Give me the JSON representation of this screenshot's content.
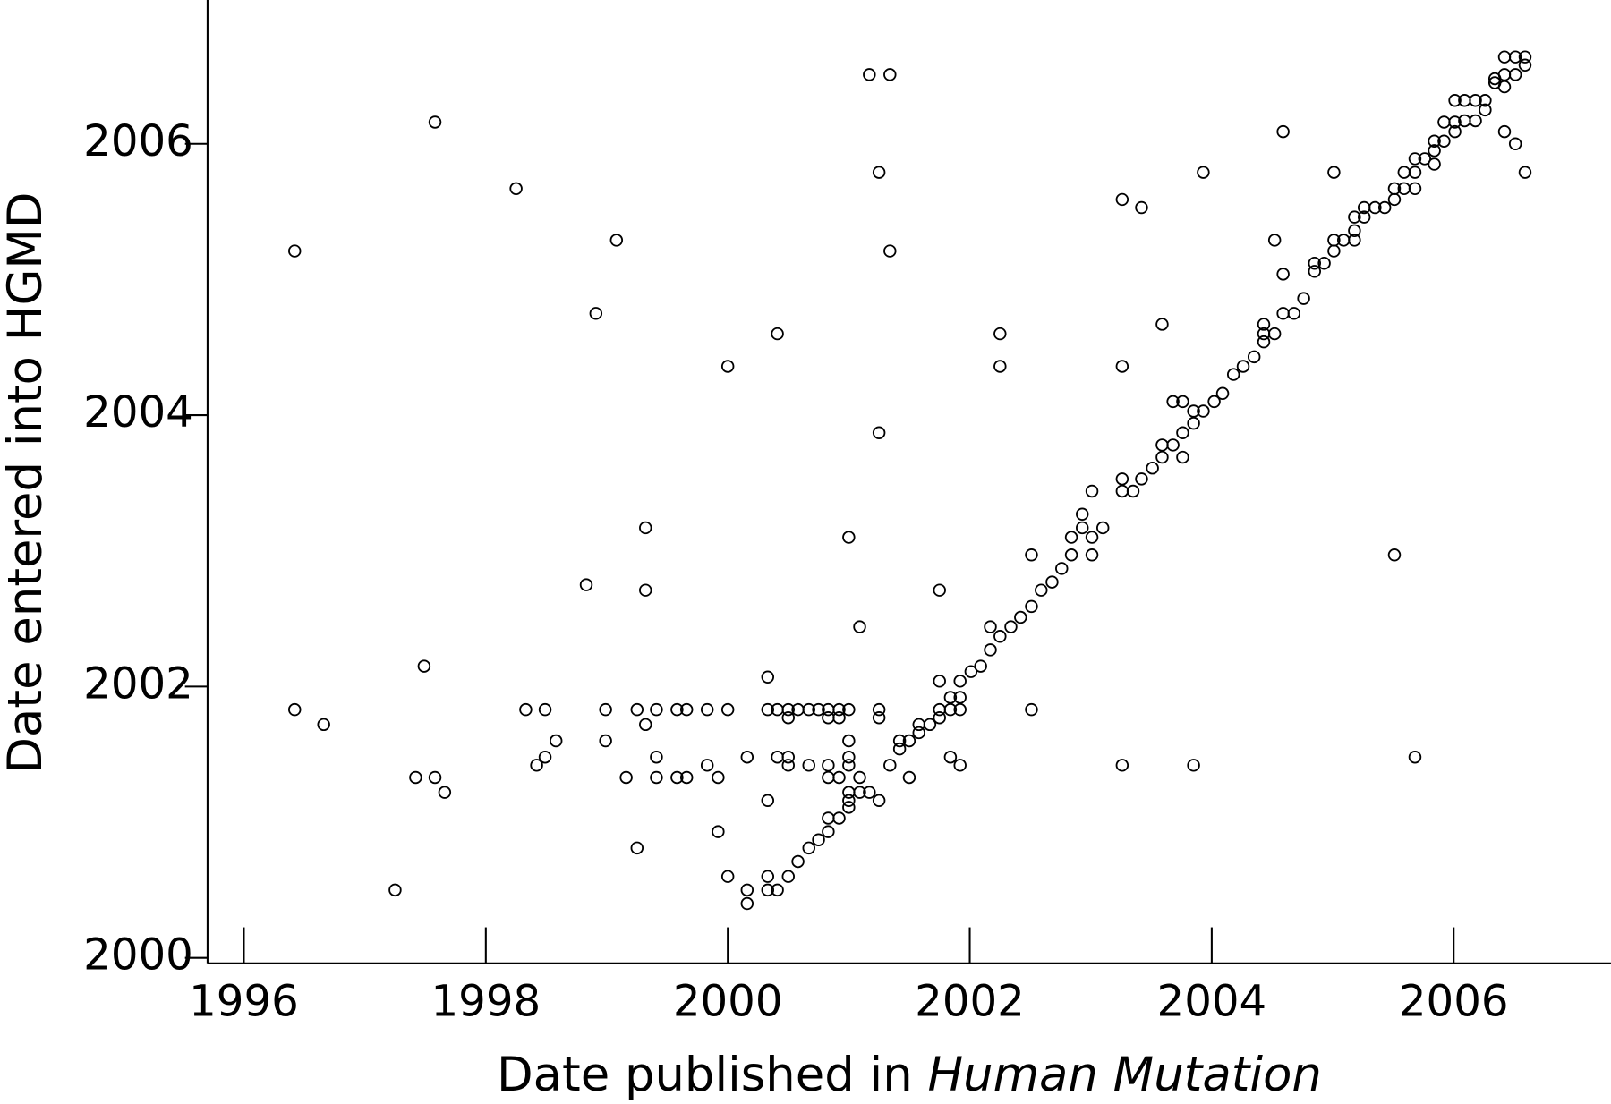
{
  "chart_data": {
    "type": "scatter",
    "xlabel": "Date published in",
    "xlabel_emphasis": "Human Mutation",
    "ylabel": "Date entered into HGMD",
    "color": "#000000",
    "grid": false,
    "xlim": [
      1995.7,
      2007.3
    ],
    "ylim": [
      1999.96,
      2007.06
    ],
    "xticks": [
      1996,
      1998,
      2000,
      2002,
      2004,
      2006
    ],
    "yticks": [
      2000,
      2002,
      2004,
      2006
    ],
    "x": [
      1996.42,
      1996.42,
      1996.66,
      1997.25,
      1997.42,
      1997.49,
      1997.58,
      1997.58,
      1997.66,
      1998.25,
      1998.33,
      1998.42,
      1998.49,
      1998.49,
      1998.58,
      1998.83,
      1998.91,
      1998.99,
      1998.99,
      1999.08,
      1999.16,
      1999.25,
      1999.25,
      1999.32,
      1999.32,
      1999.32,
      1999.41,
      1999.41,
      1999.41,
      1999.58,
      1999.58,
      1999.66,
      1999.66,
      1999.83,
      1999.83,
      1999.92,
      1999.92,
      2000.0,
      2000.0,
      2000.0,
      2000.16,
      2000.16,
      2000.16,
      2000.33,
      2000.33,
      2000.33,
      2000.33,
      2000.33,
      2000.41,
      2000.41,
      2000.41,
      2000.41,
      2000.5,
      2000.5,
      2000.5,
      2000.5,
      2000.5,
      2000.58,
      2000.58,
      2000.67,
      2000.67,
      2000.67,
      2000.75,
      2000.75,
      2000.83,
      2000.83,
      2000.83,
      2000.83,
      2000.83,
      2000.83,
      2000.92,
      2000.92,
      2000.92,
      2000.92,
      2001.0,
      2001.0,
      2001.0,
      2001.0,
      2001.0,
      2001.0,
      2001.0,
      2001.0,
      2001.09,
      2001.09,
      2001.09,
      2001.17,
      2001.17,
      2001.25,
      2001.25,
      2001.25,
      2001.25,
      2001.25,
      2001.34,
      2001.34,
      2001.34,
      2001.42,
      2001.42,
      2001.5,
      2001.5,
      2001.58,
      2001.58,
      2001.67,
      2001.75,
      2001.75,
      2001.75,
      2001.75,
      2001.84,
      2001.84,
      2001.84,
      2001.92,
      2001.92,
      2001.92,
      2001.92,
      2002.01,
      2002.09,
      2002.17,
      2002.17,
      2002.25,
      2002.25,
      2002.25,
      2002.34,
      2002.42,
      2002.51,
      2002.51,
      2002.51,
      2002.59,
      2002.68,
      2002.76,
      2002.84,
      2002.84,
      2002.93,
      2002.93,
      2003.01,
      2003.01,
      2003.01,
      2003.1,
      2003.26,
      2003.26,
      2003.26,
      2003.26,
      2003.26,
      2003.35,
      2003.42,
      2003.42,
      2003.51,
      2003.59,
      2003.59,
      2003.59,
      2003.68,
      2003.68,
      2003.76,
      2003.76,
      2003.76,
      2003.85,
      2003.85,
      2003.93,
      2003.93,
      2003.85,
      2004.02,
      2004.09,
      2004.18,
      2004.26,
      2004.35,
      2004.43,
      2004.43,
      2004.43,
      2004.52,
      2004.52,
      2004.59,
      2004.59,
      2004.59,
      2004.68,
      2004.76,
      2004.85,
      2004.85,
      2004.93,
      2005.01,
      2005.01,
      2005.01,
      2005.09,
      2005.18,
      2005.18,
      2005.18,
      2005.26,
      2005.26,
      2005.35,
      2005.43,
      2005.51,
      2005.51,
      2005.51,
      2005.59,
      2005.59,
      2005.68,
      2005.68,
      2005.68,
      2005.68,
      2005.76,
      2005.84,
      2005.84,
      2005.84,
      2005.92,
      2005.92,
      2006.01,
      2006.01,
      2006.01,
      2006.09,
      2006.09,
      2006.18,
      2006.18,
      2006.26,
      2006.26,
      2006.34,
      2006.34,
      2006.42,
      2006.42,
      2006.42,
      2006.42,
      2006.51,
      2006.51,
      2006.51,
      2006.59,
      2006.59,
      2006.59
    ],
    "values": [
      2005.21,
      2001.83,
      2001.72,
      2000.5,
      2001.33,
      2002.15,
      2006.16,
      2001.33,
      2001.22,
      2005.67,
      2001.83,
      2001.42,
      2001.48,
      2001.83,
      2001.6,
      2002.75,
      2004.75,
      2001.83,
      2001.6,
      2005.29,
      2001.33,
      2001.83,
      2000.81,
      2003.17,
      2002.71,
      2001.72,
      2001.83,
      2001.48,
      2001.33,
      2001.83,
      2001.33,
      2001.83,
      2001.33,
      2001.83,
      2001.42,
      2000.93,
      2001.33,
      2004.36,
      2001.83,
      2000.6,
      2001.48,
      2000.5,
      2000.4,
      2002.07,
      2001.83,
      2001.16,
      2000.6,
      2000.5,
      2004.6,
      2001.83,
      2001.48,
      2000.5,
      2001.83,
      2001.77,
      2001.48,
      2001.42,
      2000.6,
      2001.83,
      2000.71,
      2001.83,
      2001.42,
      2000.81,
      2001.83,
      2000.87,
      2001.83,
      2001.77,
      2001.42,
      2001.33,
      2001.03,
      2000.93,
      2001.83,
      2001.77,
      2001.33,
      2001.03,
      2001.83,
      2001.6,
      2001.48,
      2001.42,
      2001.22,
      2001.16,
      2001.11,
      2003.1,
      2002.44,
      2001.33,
      2001.22,
      2006.51,
      2001.22,
      2005.79,
      2003.87,
      2001.83,
      2001.77,
      2001.16,
      2006.51,
      2005.21,
      2001.42,
      2001.6,
      2001.54,
      2001.6,
      2001.33,
      2001.72,
      2001.66,
      2001.72,
      2002.71,
      2002.04,
      2001.83,
      2001.77,
      2001.83,
      2001.92,
      2001.48,
      2001.92,
      2002.04,
      2001.83,
      2001.42,
      2002.11,
      2002.15,
      2002.44,
      2002.27,
      2002.37,
      2004.6,
      2004.36,
      2002.44,
      2002.51,
      2002.97,
      2002.59,
      2001.83,
      2002.71,
      2002.77,
      2002.87,
      2002.97,
      2003.1,
      2003.17,
      2003.27,
      2002.97,
      2003.1,
      2003.44,
      2003.17,
      2005.59,
      2004.36,
      2003.53,
      2003.44,
      2001.42,
      2003.44,
      2005.53,
      2003.53,
      2003.61,
      2004.67,
      2003.69,
      2003.78,
      2004.1,
      2003.78,
      2004.1,
      2003.69,
      2003.87,
      2003.94,
      2004.03,
      2005.79,
      2004.03,
      2001.42,
      2004.1,
      2004.16,
      2004.3,
      2004.36,
      2004.43,
      2004.6,
      2004.67,
      2004.54,
      2004.6,
      2005.29,
      2006.09,
      2005.04,
      2004.75,
      2004.75,
      2004.86,
      2005.06,
      2005.12,
      2005.12,
      2005.79,
      2005.29,
      2005.21,
      2005.29,
      2005.29,
      2005.36,
      2005.46,
      2005.46,
      2005.53,
      2005.53,
      2005.53,
      2002.97,
      2005.59,
      2005.67,
      2005.67,
      2005.79,
      2001.48,
      2005.67,
      2005.79,
      2005.89,
      2005.89,
      2005.85,
      2005.95,
      2006.02,
      2006.02,
      2006.16,
      2006.09,
      2006.16,
      2006.32,
      2006.32,
      2006.17,
      2006.32,
      2006.17,
      2006.32,
      2006.25,
      2006.45,
      2006.48,
      2006.09,
      2006.42,
      2006.51,
      2006.64,
      2006.0,
      2006.51,
      2006.64,
      2006.64,
      2006.58,
      2005.79
    ]
  }
}
